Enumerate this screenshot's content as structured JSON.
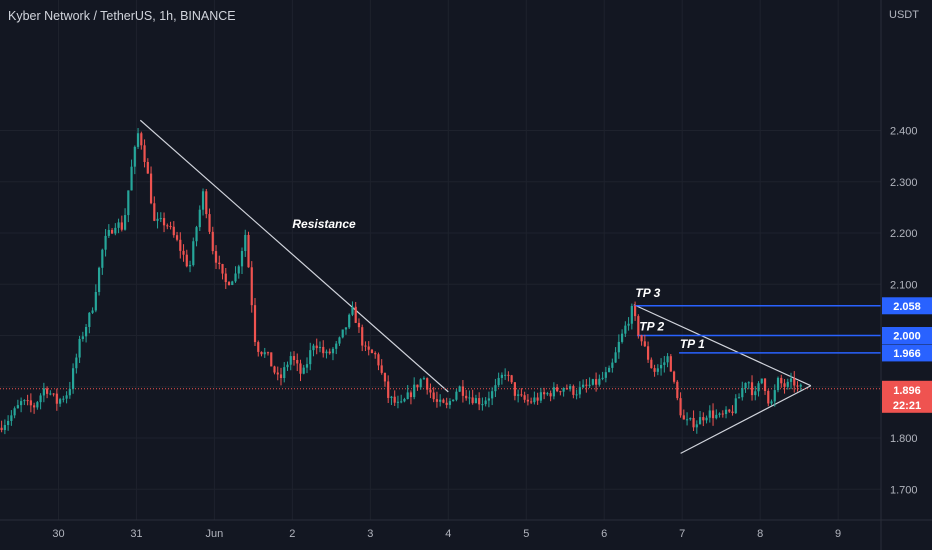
{
  "header": {
    "title": "Kyber Network / TetherUS, 1h, BINANCE",
    "currency": "USDT"
  },
  "colors": {
    "background": "#131722",
    "up": "#26a69a",
    "down": "#ef5350",
    "level": "#2962ff",
    "trendline": "#d1d4dc",
    "current_line": "#ef5350"
  },
  "chart_data": {
    "type": "candlestick",
    "title": "Kyber Network / TetherUS, 1h, BINANCE",
    "y_unit": "USDT",
    "ylim": [
      1.64,
      2.6
    ],
    "y_ticks": [
      "2.400",
      "2.300",
      "2.200",
      "2.100",
      "2.000",
      "1.900",
      "1.800",
      "1.700"
    ],
    "y_tick_values": [
      2.4,
      2.3,
      2.2,
      2.1,
      2.0,
      1.9,
      1.8,
      1.7
    ],
    "x_ticks": [
      "30",
      "31",
      "Jun",
      "2",
      "3",
      "4",
      "5",
      "6",
      "7",
      "8",
      "9"
    ],
    "x_tick_days": [
      0,
      1,
      2,
      3,
      4,
      5,
      6,
      7,
      8,
      9,
      10
    ],
    "xlim_days": [
      -0.75,
      10.55
    ],
    "grid": true,
    "price_path": [
      [
        -0.75,
        1.82
      ],
      [
        -0.6,
        1.84
      ],
      [
        -0.45,
        1.87
      ],
      [
        -0.3,
        1.86
      ],
      [
        -0.15,
        1.9
      ],
      [
        0.0,
        1.87
      ],
      [
        0.15,
        1.89
      ],
      [
        0.3,
        1.99
      ],
      [
        0.45,
        2.05
      ],
      [
        0.6,
        2.18
      ],
      [
        0.75,
        2.22
      ],
      [
        0.85,
        2.21
      ],
      [
        0.95,
        2.32
      ],
      [
        1.05,
        2.4
      ],
      [
        1.15,
        2.33
      ],
      [
        1.25,
        2.22
      ],
      [
        1.4,
        2.22
      ],
      [
        1.55,
        2.18
      ],
      [
        1.7,
        2.13
      ],
      [
        1.8,
        2.22
      ],
      [
        1.88,
        2.28
      ],
      [
        2.0,
        2.17
      ],
      [
        2.15,
        2.1
      ],
      [
        2.3,
        2.12
      ],
      [
        2.42,
        2.2
      ],
      [
        2.55,
        1.98
      ],
      [
        2.7,
        1.96
      ],
      [
        2.85,
        1.91
      ],
      [
        3.0,
        1.96
      ],
      [
        3.15,
        1.92
      ],
      [
        3.3,
        1.99
      ],
      [
        3.45,
        1.96
      ],
      [
        3.6,
        1.98
      ],
      [
        3.8,
        2.05
      ],
      [
        3.95,
        1.97
      ],
      [
        4.1,
        1.96
      ],
      [
        4.25,
        1.88
      ],
      [
        4.4,
        1.86
      ],
      [
        4.55,
        1.89
      ],
      [
        4.7,
        1.92
      ],
      [
        4.85,
        1.87
      ],
      [
        5.0,
        1.86
      ],
      [
        5.15,
        1.9
      ],
      [
        5.3,
        1.88
      ],
      [
        5.45,
        1.87
      ],
      [
        5.6,
        1.89
      ],
      [
        5.75,
        1.93
      ],
      [
        5.9,
        1.88
      ],
      [
        6.05,
        1.87
      ],
      [
        6.2,
        1.88
      ],
      [
        6.35,
        1.89
      ],
      [
        6.5,
        1.9
      ],
      [
        6.65,
        1.89
      ],
      [
        6.8,
        1.9
      ],
      [
        6.95,
        1.91
      ],
      [
        7.1,
        1.93
      ],
      [
        7.2,
        1.98
      ],
      [
        7.3,
        2.02
      ],
      [
        7.38,
        2.05
      ],
      [
        7.45,
        2.01
      ],
      [
        7.55,
        1.97
      ],
      [
        7.65,
        1.93
      ],
      [
        7.75,
        1.94
      ],
      [
        7.85,
        1.96
      ],
      [
        7.92,
        1.9
      ],
      [
        7.98,
        1.86
      ],
      [
        8.05,
        1.83
      ],
      [
        8.2,
        1.83
      ],
      [
        8.35,
        1.85
      ],
      [
        8.5,
        1.84
      ],
      [
        8.65,
        1.85
      ],
      [
        8.75,
        1.88
      ],
      [
        8.85,
        1.92
      ],
      [
        8.95,
        1.88
      ],
      [
        9.05,
        1.92
      ],
      [
        9.15,
        1.86
      ],
      [
        9.25,
        1.91
      ],
      [
        9.35,
        1.9
      ],
      [
        9.45,
        1.91
      ],
      [
        9.5,
        1.896
      ]
    ],
    "trendlines": [
      {
        "label": "Resistance",
        "from": [
          1.05,
          2.42
        ],
        "to": [
          5.0,
          1.89
        ]
      },
      {
        "label": "",
        "from": [
          7.38,
          2.06
        ],
        "to": [
          9.65,
          1.902
        ]
      },
      {
        "label": "",
        "from": [
          7.98,
          1.77
        ],
        "to": [
          9.65,
          1.902
        ]
      }
    ],
    "annotations": [
      {
        "text": "Resistance",
        "day": 3.0,
        "price": 2.21
      },
      {
        "text": "TP 3",
        "day": 7.4,
        "price": 2.075
      },
      {
        "text": "TP 2",
        "day": 7.45,
        "price": 2.01
      },
      {
        "text": "TP 1",
        "day": 7.97,
        "price": 1.976
      }
    ],
    "levels": [
      {
        "label": "2.058",
        "price": 2.058,
        "from_day": 7.38
      },
      {
        "label": "2.000",
        "price": 2.0,
        "from_day": 7.42
      },
      {
        "label": "1.966",
        "price": 1.966,
        "from_day": 7.96
      }
    ],
    "current_price": {
      "label": "1.896",
      "countdown": "22:21",
      "price": 1.896
    }
  }
}
